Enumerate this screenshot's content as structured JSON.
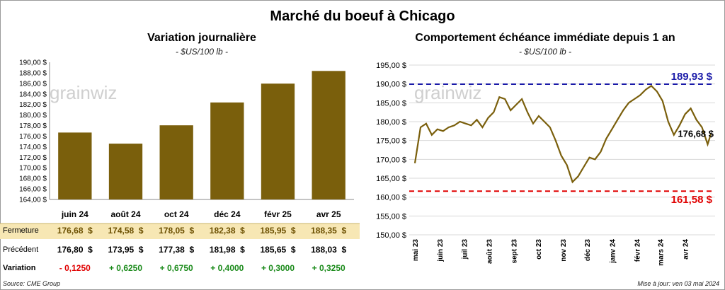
{
  "title": "Marché du boeuf à Chicago",
  "left": {
    "subtitle": "Variation journalière",
    "unit": "- $US/100 lb -",
    "watermark": "grainwiz",
    "chart_data": {
      "type": "bar",
      "categories": [
        "juin 24",
        "août 24",
        "oct 24",
        "déc 24",
        "févr 25",
        "avr 25"
      ],
      "values": [
        176.68,
        174.58,
        178.05,
        182.38,
        185.95,
        188.35
      ],
      "ylim": [
        164,
        190
      ],
      "yticks": [
        "164,00 $",
        "166,00 $",
        "168,00 $",
        "170,00 $",
        "172,00 $",
        "174,00 $",
        "176,00 $",
        "178,00 $",
        "180,00 $",
        "182,00 $",
        "184,00 $",
        "186,00 $",
        "188,00 $",
        "190,00 $"
      ],
      "bar_color": "#7a5f0c"
    },
    "table": {
      "rows": [
        {
          "label": "Fermeture",
          "values": [
            "176,68",
            "174,58",
            "178,05",
            "182,38",
            "185,95",
            "188,35"
          ],
          "currency": "$"
        },
        {
          "label": "Précédent",
          "values": [
            "176,80",
            "173,95",
            "177,38",
            "181,98",
            "185,65",
            "188,03"
          ],
          "currency": "$"
        },
        {
          "label": "Variation",
          "values": [
            "- 0,1250",
            "+ 0,6250",
            "+ 0,6750",
            "+ 0,4000",
            "+ 0,3000",
            "+ 0,3250"
          ],
          "currency": ""
        }
      ],
      "highlight_color": "#f7e7b4",
      "negative_color": "#e00000",
      "positive_color": "#1a8a1a"
    }
  },
  "right": {
    "subtitle": "Comportement échéance immédiate depuis 1 an",
    "unit": "- $US/100 lb -",
    "watermark": "grainwiz",
    "chart_data": {
      "type": "line",
      "ylim": [
        150,
        195
      ],
      "yticks": [
        "150,00 $",
        "155,00 $",
        "160,00 $",
        "165,00 $",
        "170,00 $",
        "175,00 $",
        "180,00 $",
        "185,00 $",
        "190,00 $",
        "195,00 $"
      ],
      "xticks": [
        "mai 23",
        "juin 23",
        "juil 23",
        "août 23",
        "sept 23",
        "oct 23",
        "nov 23",
        "déc 23",
        "janv 24",
        "févr 24",
        "mars 24",
        "avr 24"
      ],
      "x": [
        "2023-05-01",
        "2023-05-08",
        "2023-05-15",
        "2023-05-22",
        "2023-05-29",
        "2023-06-05",
        "2023-06-12",
        "2023-06-19",
        "2023-06-26",
        "2023-07-03",
        "2023-07-10",
        "2023-07-17",
        "2023-07-24",
        "2023-07-31",
        "2023-08-07",
        "2023-08-14",
        "2023-08-21",
        "2023-08-28",
        "2023-09-04",
        "2023-09-11",
        "2023-09-18",
        "2023-09-25",
        "2023-10-02",
        "2023-10-09",
        "2023-10-16",
        "2023-10-23",
        "2023-10-30",
        "2023-11-06",
        "2023-11-13",
        "2023-11-20",
        "2023-11-27",
        "2023-12-04",
        "2023-12-11",
        "2023-12-18",
        "2023-12-25",
        "2024-01-01",
        "2024-01-08",
        "2024-01-15",
        "2024-01-22",
        "2024-01-29",
        "2024-02-05",
        "2024-02-12",
        "2024-02-19",
        "2024-02-26",
        "2024-03-04",
        "2024-03-11",
        "2024-03-18",
        "2024-03-25",
        "2024-04-01",
        "2024-04-08",
        "2024-04-15",
        "2024-04-22",
        "2024-04-29",
        "2024-05-03"
      ],
      "values": [
        169.0,
        178.5,
        179.5,
        176.5,
        178.0,
        177.5,
        178.5,
        179.0,
        180.0,
        179.5,
        179.0,
        180.5,
        178.5,
        181.0,
        182.5,
        186.5,
        186.0,
        183.0,
        184.5,
        186.0,
        182.5,
        179.5,
        181.5,
        180.0,
        178.5,
        175.0,
        171.0,
        168.5,
        164.0,
        165.5,
        168.0,
        170.5,
        170.0,
        172.0,
        175.5,
        178.0,
        180.5,
        183.0,
        185.0,
        186.0,
        187.0,
        188.5,
        189.5,
        188.0,
        185.5,
        180.0,
        176.5,
        179.0,
        182.0,
        183.5,
        180.5,
        178.5,
        174.0,
        176.68
      ],
      "lines": [
        {
          "label": "189,93 $",
          "value": 189.93,
          "color": "#1a1aa8"
        },
        {
          "label": "161,58 $",
          "value": 161.58,
          "color": "#e00000"
        }
      ],
      "last_label": "176,68 $",
      "line_color": "#7a5f0c"
    }
  },
  "footer": {
    "source": "Source: CME Group",
    "updated": "Mise à jour: ven 03 mai 2024"
  }
}
